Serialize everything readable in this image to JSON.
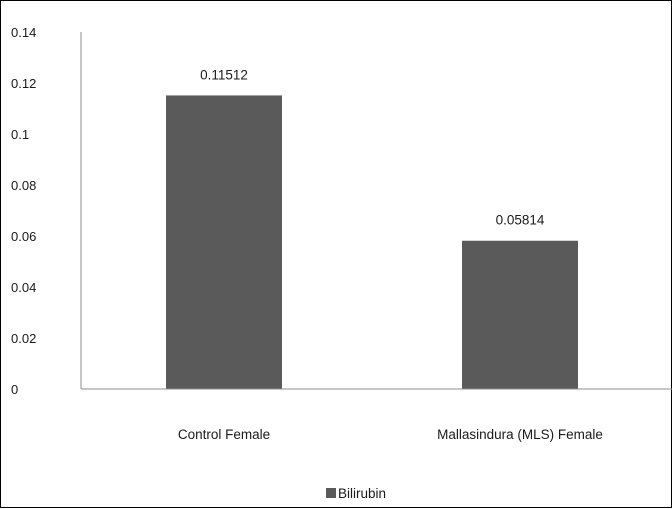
{
  "chart_data": {
    "type": "bar",
    "categories": [
      "Control Female",
      "Mallasindura (MLS) Female"
    ],
    "series": [
      {
        "name": "Bilirubin",
        "values": [
          0.11512,
          0.05814
        ],
        "color": "#5a5a5a"
      }
    ],
    "data_labels": [
      "0.11512",
      "0.05814"
    ],
    "ylim": [
      0,
      0.14
    ],
    "yticks": [
      "0",
      "0.02",
      "0.04",
      "0.06",
      "0.08",
      "0.1",
      "0.12",
      "0.14"
    ],
    "title": "",
    "xlabel": "",
    "ylabel": "",
    "grid": false,
    "legend_position": "bottom"
  }
}
